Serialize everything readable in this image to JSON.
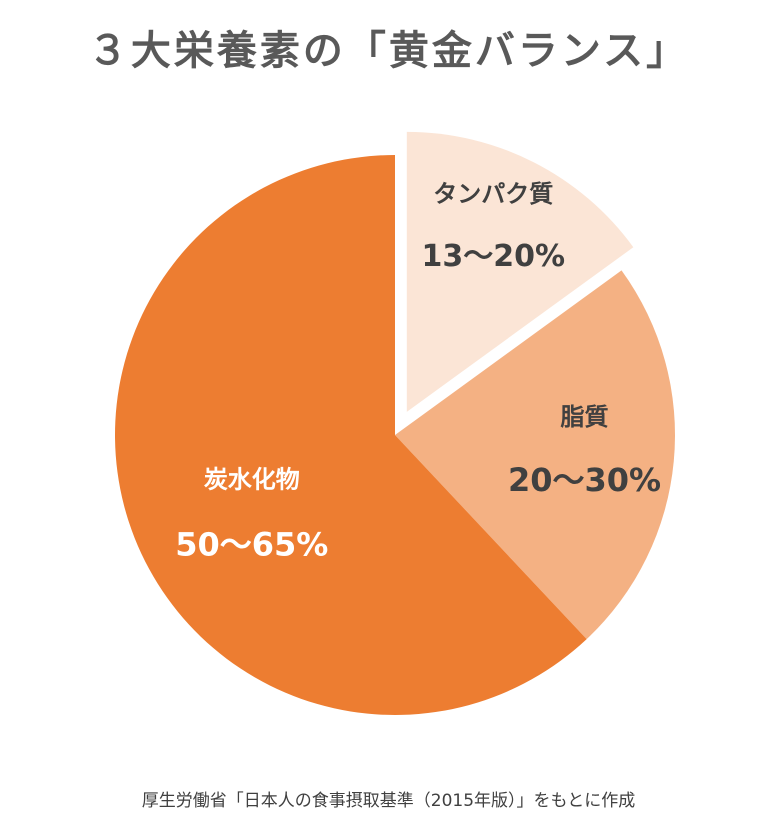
{
  "title": "３大栄養素の「黄金バランス」",
  "source": "厚生労働省「日本人の食事摂取基準（2015年版）」をもとに作成",
  "colors": {
    "carbs": "#ed7d31",
    "fat": "#f4b183",
    "protein": "#fbe5d6",
    "dark_text": "#404040",
    "light_text": "#ffffff"
  },
  "chart_data": {
    "type": "pie",
    "start": "12 o'clock, clockwise",
    "slices": [
      {
        "label": "タンパク質",
        "range": "13〜20%",
        "value": 15,
        "color": "#fbe5d6",
        "exploded": true
      },
      {
        "label": "脂質",
        "range": "20〜30%",
        "value": 23,
        "color": "#f4b183",
        "exploded": false
      },
      {
        "label": "炭水化物",
        "range": "50〜65%",
        "value": 62,
        "color": "#ed7d31",
        "exploded": false
      }
    ]
  }
}
